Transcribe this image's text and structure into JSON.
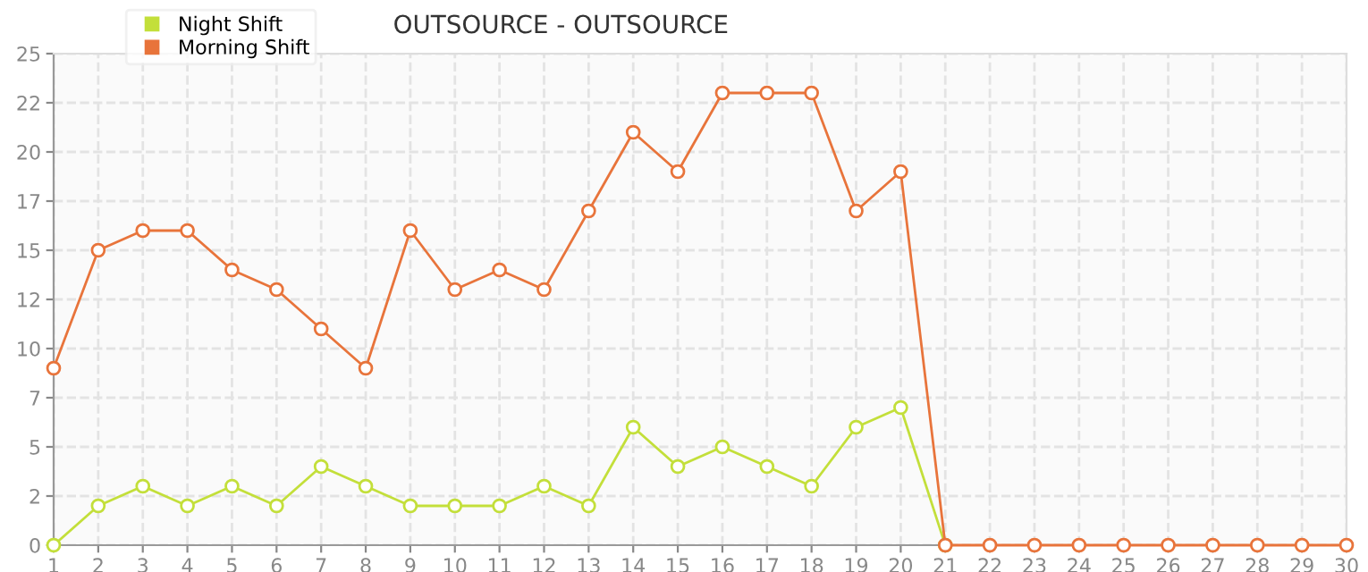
{
  "chart_data": {
    "type": "line",
    "title": "OUTSOURCE - OUTSOURCE",
    "x": [
      1,
      2,
      3,
      4,
      5,
      6,
      7,
      8,
      9,
      10,
      11,
      12,
      13,
      14,
      15,
      16,
      17,
      18,
      19,
      20,
      21,
      22,
      23,
      24,
      25,
      26,
      27,
      28,
      29,
      30
    ],
    "series": [
      {
        "name": "Night Shift",
        "color": "#c3df3a",
        "values": [
          0,
          2,
          3,
          2,
          3,
          2,
          4,
          3,
          2,
          2,
          2,
          3,
          2,
          6,
          4,
          5,
          4,
          3,
          6,
          7,
          0,
          null,
          null,
          null,
          null,
          null,
          null,
          null,
          null,
          null
        ]
      },
      {
        "name": "Morning Shift",
        "color": "#e8743b",
        "values": [
          9,
          15,
          16,
          16,
          14,
          13,
          11,
          9,
          16,
          13,
          14,
          13,
          17,
          21,
          19,
          23,
          23,
          23,
          17,
          19,
          0,
          0,
          0,
          0,
          0,
          0,
          0,
          0,
          0,
          0
        ]
      }
    ],
    "xlim": [
      1,
      30
    ],
    "xticks": [
      1,
      2,
      3,
      4,
      5,
      6,
      7,
      8,
      9,
      10,
      11,
      12,
      13,
      14,
      15,
      16,
      17,
      18,
      19,
      20,
      21,
      22,
      23,
      24,
      25,
      26,
      27,
      28,
      29,
      30
    ],
    "ylim": [
      0,
      25
    ],
    "yticks": [
      0,
      {
        "value": 2.5,
        "label": "2"
      },
      5,
      {
        "value": 7.5,
        "label": "7"
      },
      10,
      {
        "value": 12.5,
        "label": "12"
      },
      15,
      {
        "value": 17.5,
        "label": "17"
      },
      20,
      {
        "value": 22.5,
        "label": "22"
      },
      25
    ],
    "grid": true,
    "legend": "top left",
    "marker": "circle",
    "line_style": "solid"
  }
}
